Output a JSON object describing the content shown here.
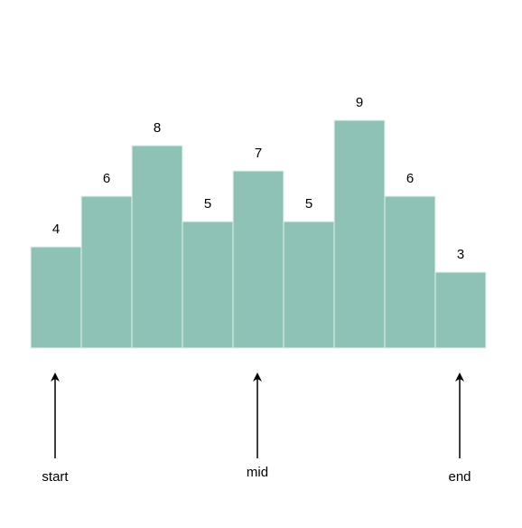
{
  "chart_data": {
    "type": "bar",
    "values": [
      4,
      6,
      8,
      5,
      7,
      5,
      9,
      6,
      3
    ],
    "data_labels": [
      "4",
      "6",
      "8",
      "5",
      "7",
      "5",
      "9",
      "6",
      "3"
    ]
  },
  "pointers": [
    {
      "label": "start",
      "bar_index": 0
    },
    {
      "label": "mid",
      "bar_index": 4
    },
    {
      "label": "end",
      "bar_index": 8
    }
  ],
  "colors": {
    "bar_fill": "#8fc2b7",
    "bar_edge": "#e4f1ee",
    "arrow": "#000000",
    "text": "#000000"
  }
}
